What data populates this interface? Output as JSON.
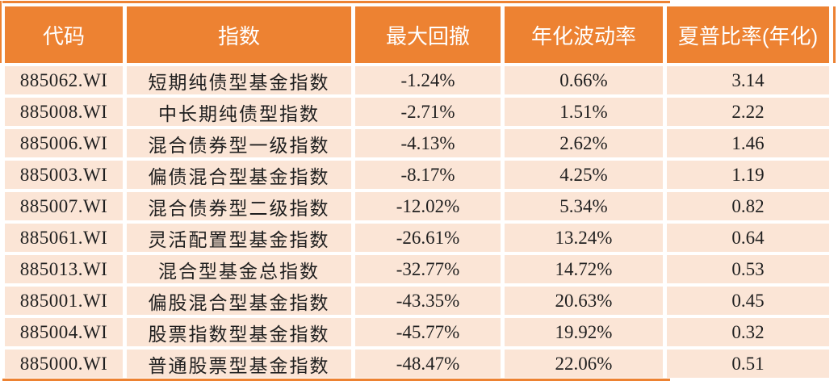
{
  "chart_data": {
    "type": "table",
    "columns": [
      "代码",
      "指数",
      "最大回撤",
      "年化波动率",
      "夏普比率(年化)"
    ],
    "column_keys": [
      "code",
      "index-name",
      "max-drawdown",
      "annualized-volatility",
      "sharpe-ratio"
    ],
    "rows": [
      [
        "885062.WI",
        "短期纯债型基金指数",
        "-1.24%",
        "0.66%",
        "3.14"
      ],
      [
        "885008.WI",
        "中长期纯债型指数",
        "-2.71%",
        "1.51%",
        "2.22"
      ],
      [
        "885006.WI",
        "混合债券型一级指数",
        "-4.13%",
        "2.62%",
        "1.46"
      ],
      [
        "885003.WI",
        "偏债混合型基金指数",
        "-8.17%",
        "4.25%",
        "1.19"
      ],
      [
        "885007.WI",
        "混合债券型二级指数",
        "-12.02%",
        "5.34%",
        "0.82"
      ],
      [
        "885061.WI",
        "灵活配置型基金指数",
        "-26.61%",
        "13.24%",
        "0.64"
      ],
      [
        "885013.WI",
        "混合型基金总指数",
        "-32.77%",
        "14.72%",
        "0.53"
      ],
      [
        "885001.WI",
        "偏股混合型基金指数",
        "-43.35%",
        "20.63%",
        "0.45"
      ],
      [
        "885004.WI",
        "股票指数型基金指数",
        "-45.77%",
        "19.92%",
        "0.32"
      ],
      [
        "885000.WI",
        "普通股票型基金指数",
        "-48.47%",
        "22.06%",
        "0.51"
      ]
    ],
    "colors": {
      "accent": "#ED8232",
      "row_bg": "#FBE5D6",
      "header_text": "#FFFFFF",
      "body_text": "#1F1F1F"
    },
    "layout_hints": {
      "grid": "white gaps between cells",
      "legend": "none"
    }
  }
}
